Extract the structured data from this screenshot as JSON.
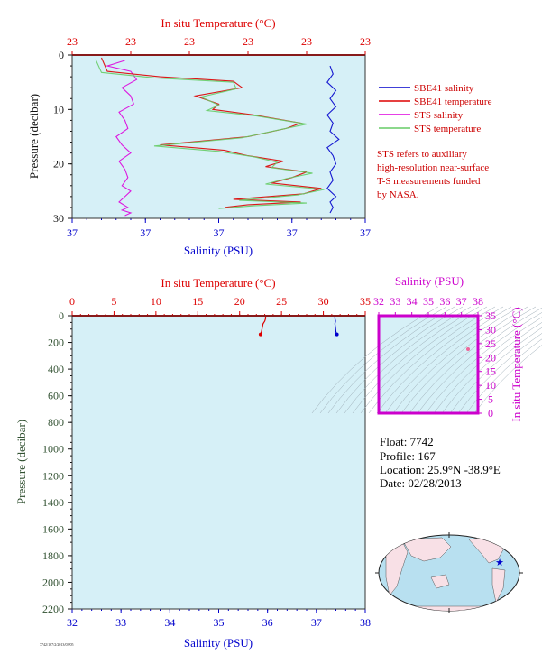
{
  "colors": {
    "panel_bg": "#d6f0f7",
    "temp_axis": "#dd0000",
    "sal_axis": "#0000cc",
    "pressure_axis": "#111111",
    "pressure_label_deep": "#2f4f2f",
    "sbe_salinity": "#0000cc",
    "sbe_temperature": "#dd0000",
    "sts_salinity": "#dd00dd",
    "sts_temperature": "#66cc66",
    "ts_frame": "#cc00cc",
    "note": "#cc0000"
  },
  "chart_data": [
    {
      "type": "line",
      "panel": "upper",
      "top_axis": {
        "label": "In situ Temperature (°C)",
        "tick_labels": [
          "23",
          "23",
          "23",
          "23",
          "23",
          "23"
        ]
      },
      "bottom_axis": {
        "label": "Salinity (PSU)",
        "tick_labels": [
          "37",
          "37",
          "37",
          "37",
          "37"
        ]
      },
      "left_axis": {
        "label": "Pressure (decibar)",
        "tick_labels": [
          "0",
          "10",
          "20",
          "30"
        ],
        "ylim": [
          0,
          30
        ]
      },
      "legend": {
        "placement": "right",
        "entries": [
          {
            "name": "SBE41 salinity",
            "color": "#0000cc"
          },
          {
            "name": "SBE41 temperature",
            "color": "#dd0000"
          },
          {
            "name": "STS salinity",
            "color": "#dd00dd"
          },
          {
            "name": "STS temperature",
            "color": "#66cc66"
          }
        ]
      },
      "note": [
        "STS refers to auxiliary",
        "high-resolution near-surface",
        "T-S measurements funded",
        "by NASA."
      ],
      "series": [
        {
          "name": "SBE41 salinity",
          "x_frac": [
            0.88,
            0.89,
            0.87,
            0.9,
            0.88,
            0.9,
            0.87,
            0.89,
            0.88,
            0.91,
            0.87,
            0.89,
            0.9,
            0.88,
            0.89,
            0.87,
            0.9,
            0.88,
            0.89,
            0.88
          ],
          "pressure": [
            2,
            3.5,
            5,
            6.5,
            8,
            9.5,
            11,
            12.5,
            14,
            15.5,
            17,
            18.5,
            20,
            21.5,
            23,
            24.5,
            26,
            27,
            28,
            29
          ]
        },
        {
          "name": "STS salinity",
          "x_frac": [
            0.18,
            0.12,
            0.2,
            0.22,
            0.17,
            0.2,
            0.21,
            0.16,
            0.18,
            0.19,
            0.15,
            0.17,
            0.2,
            0.16,
            0.18,
            0.19,
            0.17,
            0.2,
            0.18,
            0.16,
            0.19,
            0.17,
            0.2,
            0.18
          ],
          "pressure": [
            1,
            2,
            3,
            4.5,
            6,
            7.5,
            9,
            10.5,
            12,
            13.5,
            15,
            16.5,
            18,
            19.5,
            21,
            22.5,
            24,
            25,
            26,
            27,
            28,
            28.5,
            29,
            29.5
          ]
        },
        {
          "name": "SBE41 temperature",
          "x_frac": [
            0.1,
            0.12,
            0.3,
            0.55,
            0.58,
            0.42,
            0.5,
            0.48,
            0.62,
            0.78,
            0.73,
            0.6,
            0.3,
            0.52,
            0.6,
            0.72,
            0.66,
            0.8,
            0.75,
            0.68,
            0.85,
            0.79,
            0.55,
            0.78,
            0.6,
            0.52
          ],
          "pressure": [
            0.5,
            3,
            4,
            4.8,
            6,
            7.5,
            9,
            10,
            11,
            12.5,
            13.5,
            15,
            16.5,
            17.5,
            18.5,
            19.5,
            20.5,
            21.5,
            22.5,
            23.5,
            24.5,
            25.5,
            26.5,
            27,
            27.5,
            28
          ]
        },
        {
          "name": "STS temperature",
          "x_frac": [
            0.08,
            0.1,
            0.28,
            0.55,
            0.56,
            0.44,
            0.5,
            0.46,
            0.63,
            0.8,
            0.71,
            0.58,
            0.28,
            0.5,
            0.62,
            0.7,
            0.68,
            0.82,
            0.73,
            0.66,
            0.86,
            0.77,
            0.57,
            0.8,
            0.62,
            0.5
          ],
          "pressure": [
            0.8,
            3.2,
            4.2,
            5,
            6.2,
            7.7,
            9.2,
            10.2,
            11.2,
            12.7,
            13.7,
            15.2,
            16.7,
            17.7,
            18.7,
            19.7,
            20.7,
            21.7,
            22.7,
            23.7,
            24.7,
            25.7,
            26.7,
            27.2,
            27.7,
            28.2
          ]
        }
      ]
    },
    {
      "type": "line",
      "panel": "lower",
      "top_axis": {
        "label": "In situ Temperature (°C)",
        "tick_labels": [
          "0",
          "5",
          "10",
          "15",
          "20",
          "25",
          "30",
          "35"
        ],
        "xlim": [
          0,
          35
        ]
      },
      "bottom_axis": {
        "label": "Salinity (PSU)",
        "tick_labels": [
          "32",
          "33",
          "34",
          "35",
          "36",
          "37",
          "38"
        ],
        "xlim": [
          32,
          38
        ]
      },
      "left_axis": {
        "label": "Pressure (decibar)",
        "tick_labels": [
          "0",
          "200",
          "400",
          "600",
          "800",
          "1000",
          "1200",
          "1400",
          "1600",
          "1800",
          "2000",
          "2200"
        ],
        "ylim": [
          0,
          2200
        ]
      },
      "series": [
        {
          "name": "SBE41 temperature",
          "temperature": [
            23.1,
            23.1,
            23.0,
            22.8,
            22.7,
            22.6,
            22.5
          ],
          "pressure": [
            0,
            20,
            40,
            60,
            90,
            120,
            140
          ]
        },
        {
          "name": "SBE41 salinity",
          "salinity": [
            37.38,
            37.38,
            37.39,
            37.38,
            37.39,
            37.4,
            37.42
          ],
          "pressure": [
            0,
            20,
            40,
            60,
            90,
            120,
            140
          ]
        }
      ]
    },
    {
      "type": "scatter",
      "panel": "ts-diagram",
      "top_axis": {
        "label": "Salinity (PSU)",
        "tick_labels": [
          "32",
          "33",
          "34",
          "35",
          "36",
          "37",
          "38"
        ],
        "xlim": [
          32,
          38
        ]
      },
      "right_axis": {
        "label": "In situ Temperature (°C)",
        "tick_labels": [
          "0",
          "5",
          "10",
          "15",
          "20",
          "25",
          "30",
          "35"
        ],
        "ylim": [
          0,
          35
        ]
      },
      "points": [
        {
          "salinity": 37.4,
          "temperature": 23
        }
      ]
    }
  ],
  "float_info": {
    "float": "Float: 7742",
    "profile": "Profile: 167",
    "location": "Location: 25.9°N -38.9°E",
    "date": "Date: 02/28/2013"
  },
  "map": {
    "marker": {
      "lat": 25.9,
      "lon": -38.9
    }
  },
  "footer": {
    "stamp": "7742/167/2/2013/03/05"
  }
}
